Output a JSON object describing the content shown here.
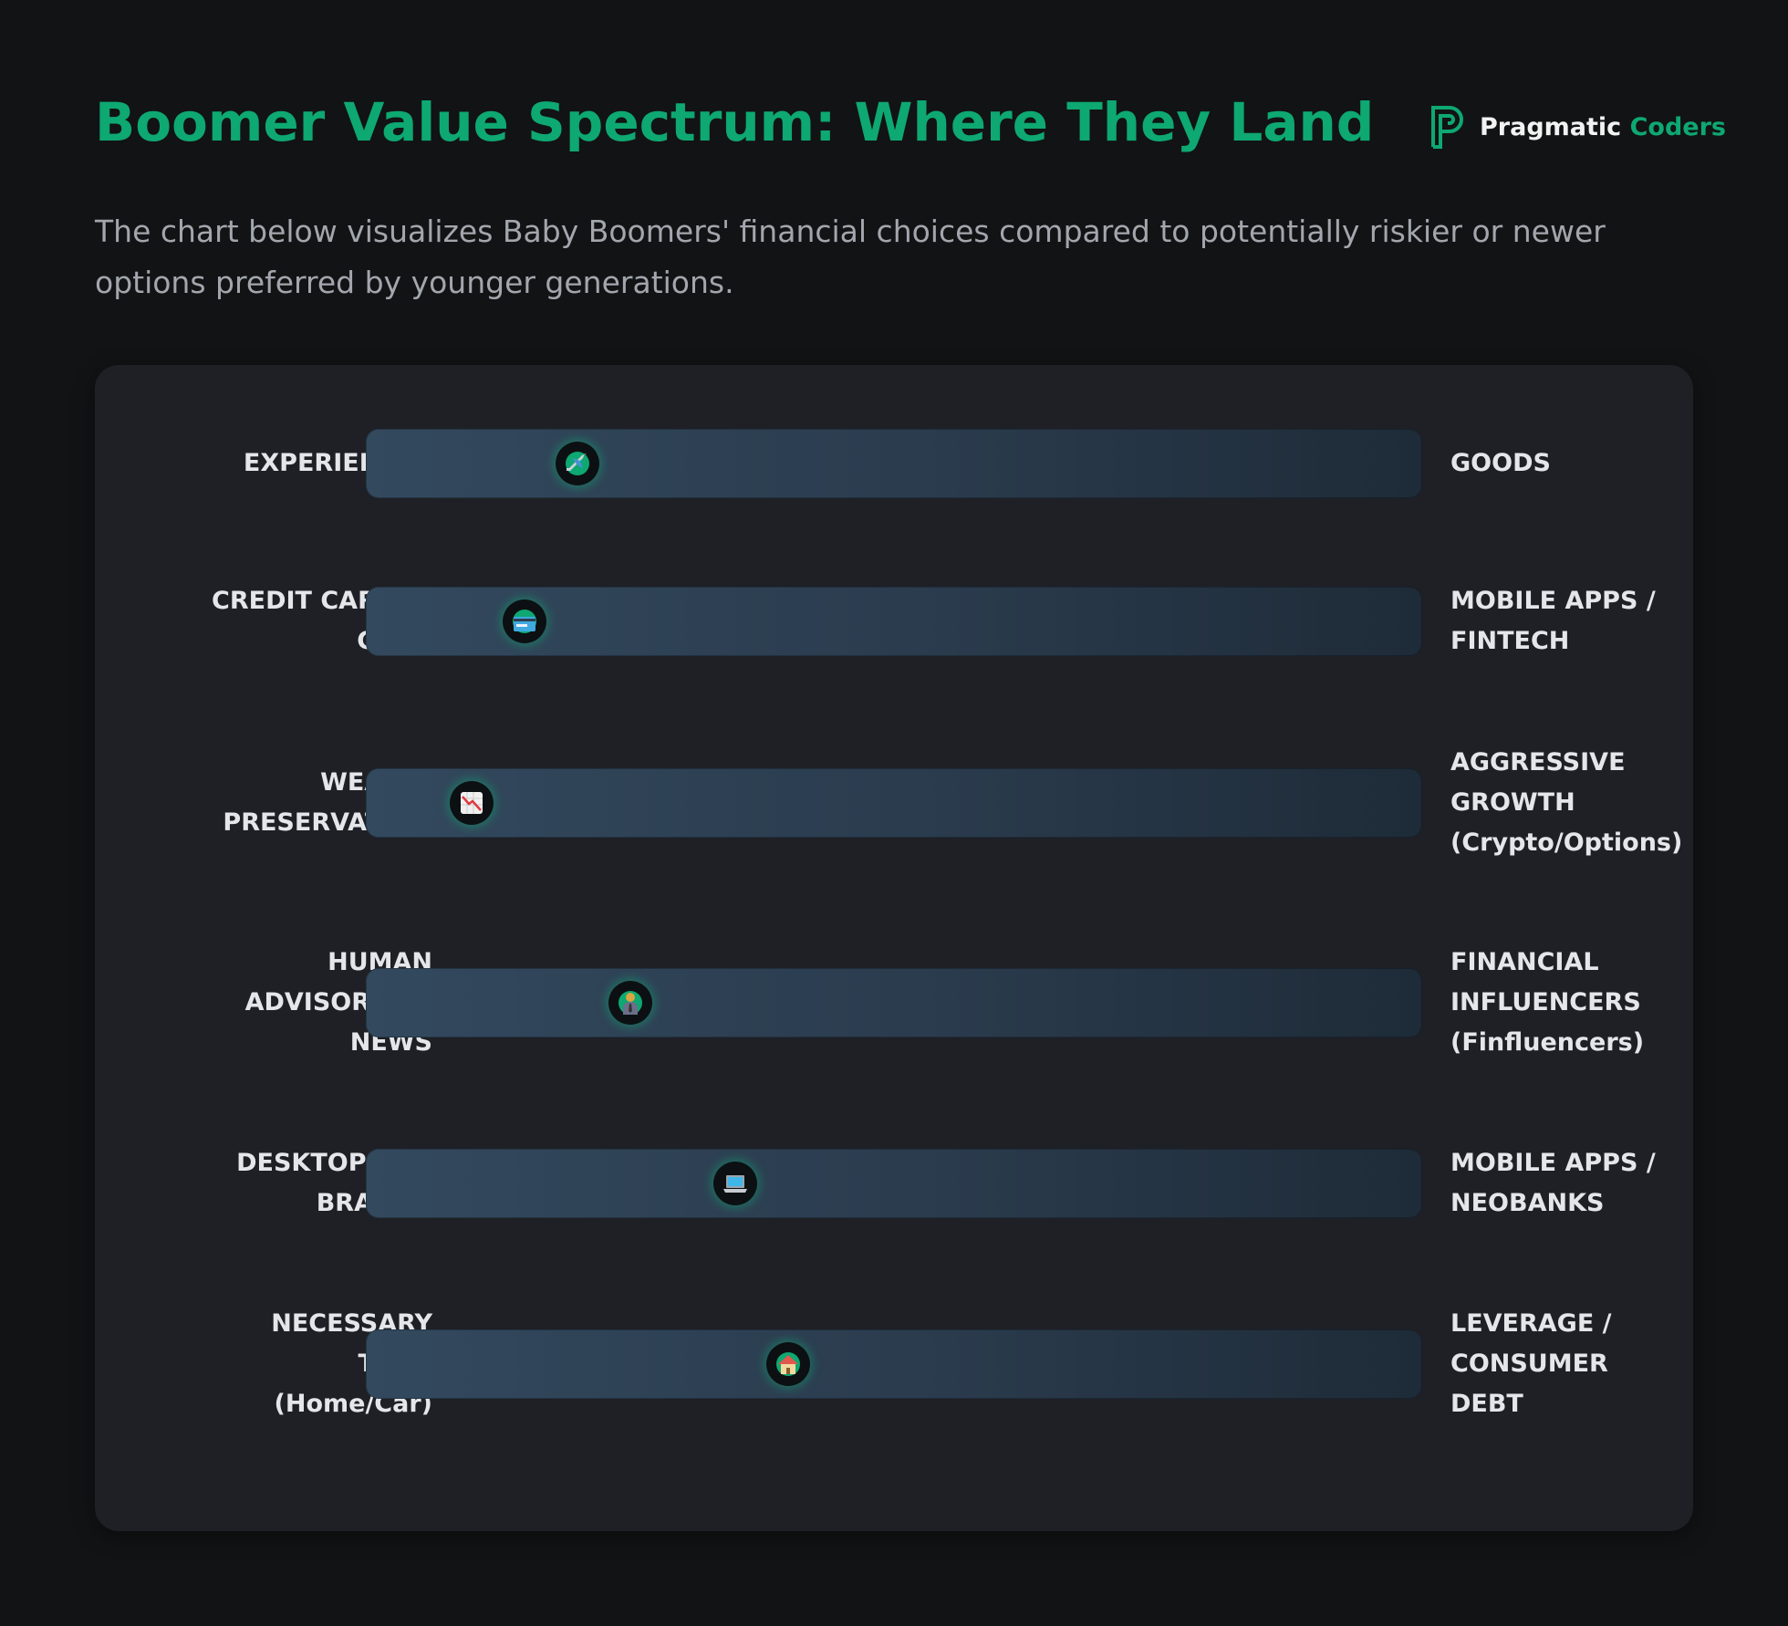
{
  "header": {
    "title": "Boomer Value Spectrum: Where They Land",
    "subtitle": "The chart below visualizes Baby Boomers' financial choices compared to potentially riskier or newer options preferred by younger generations."
  },
  "logo": {
    "name_part1": "Pragmatic",
    "name_part2": "Coders"
  },
  "colors": {
    "accent": "#0ea872",
    "background": "#121314",
    "panel": "#1e2026",
    "bar_start": "#33495e",
    "bar_end": "#1e2b38"
  },
  "chart_data": {
    "type": "spectrum",
    "scale": [
      0,
      1
    ],
    "rows": [
      {
        "left": "EXPERIENCES",
        "right": "GOODS",
        "position": 0.2,
        "icon": "airplane-icon"
      },
      {
        "left": "CREDIT CARDS / CASH",
        "right": "MOBILE APPS / FINTECH",
        "position": 0.15,
        "icon": "credit-card-icon"
      },
      {
        "left": "WEALTH PRESERVATION",
        "right": "AGGRESSIVE GROWTH (Crypto/Options)",
        "position": 0.1,
        "icon": "chart-decreasing-icon"
      },
      {
        "left": "HUMAN ADVISOR / TV NEWS",
        "right": "FINANCIAL INFLUENCERS (Finfluencers)",
        "position": 0.25,
        "icon": "office-worker-icon"
      },
      {
        "left": "DESKTOP / IN-BRANCH",
        "right": "MOBILE APPS / NEOBANKS",
        "position": 0.35,
        "icon": "laptop-icon"
      },
      {
        "left": "NECESSARY TOOL (Home/Car)",
        "right": "LEVERAGE / CONSUMER DEBT",
        "position": 0.4,
        "icon": "house-icon"
      }
    ]
  }
}
